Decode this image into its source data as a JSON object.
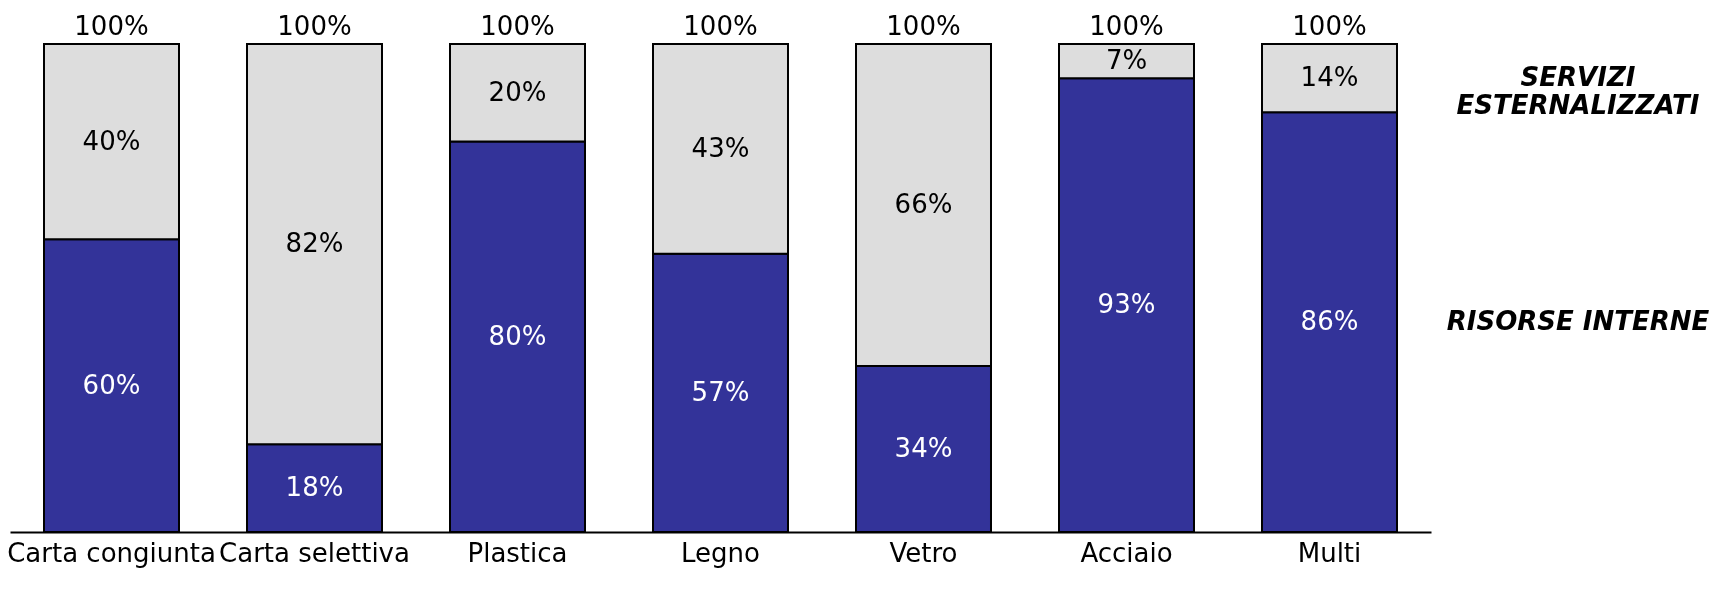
{
  "chart_data": {
    "type": "bar",
    "stacked": true,
    "categories": [
      "Carta congiunta",
      "Carta selettiva",
      "Plastica",
      "Legno",
      "Vetro",
      "Acciaio",
      "Multi"
    ],
    "series": [
      {
        "name": "RISORSE INTERNE",
        "color": "#333399",
        "values": [
          60,
          18,
          80,
          57,
          34,
          93,
          86
        ],
        "value_labels": [
          "60%",
          "18%",
          "80%",
          "57%",
          "34%",
          "93%",
          "86%"
        ]
      },
      {
        "name": "SERVIZI ESTERNALIZZATI",
        "color": "#dddddd",
        "values": [
          40,
          82,
          20,
          43,
          66,
          7,
          14
        ],
        "value_labels": [
          "40%",
          "82%",
          "20%",
          "43%",
          "66%",
          "7%",
          "14%"
        ]
      }
    ],
    "totals": [
      "100%",
      "100%",
      "100%",
      "100%",
      "100%",
      "100%",
      "100%"
    ]
  }
}
